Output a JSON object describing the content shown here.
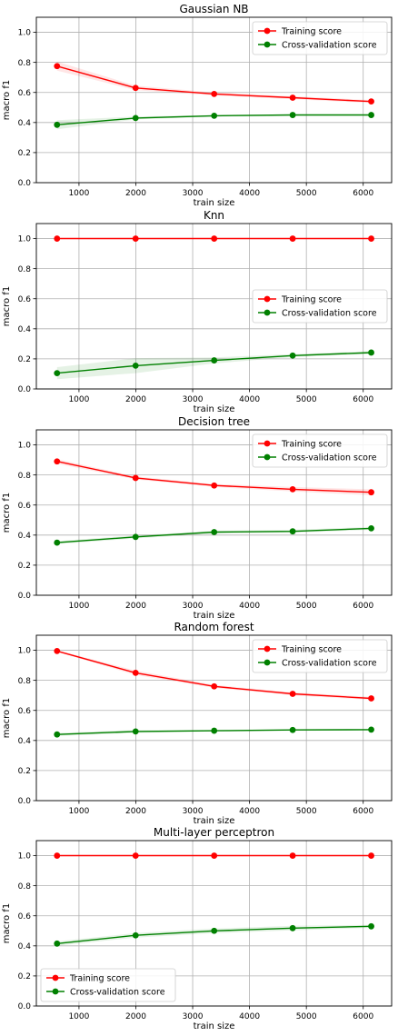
{
  "figure": {
    "background": "#ffffff",
    "colors": {
      "training": "#ff0000",
      "cv": "#008000",
      "grid": "#b0b0b0",
      "axis": "#000000"
    }
  },
  "chart_data": [
    {
      "type": "line",
      "title": "Gaussian NB",
      "xlabel": "train size",
      "ylabel": "macro f1",
      "xlim": [
        250,
        6500
      ],
      "ylim": [
        0,
        1.1
      ],
      "xticks": [
        1000,
        2000,
        3000,
        4000,
        5000,
        6000
      ],
      "yticks": [
        0.0,
        0.2,
        0.4,
        0.6,
        0.8,
        1.0
      ],
      "grid": true,
      "legend_position": "upper right",
      "x": [
        614,
        1996,
        3378,
        4759,
        6141
      ],
      "series": [
        {
          "name": "Training score",
          "color": "#ff0000",
          "values": [
            0.775,
            0.63,
            0.59,
            0.565,
            0.54
          ],
          "std": [
            0.03,
            0.015,
            0.01,
            0.01,
            0.01
          ]
        },
        {
          "name": "Cross-validation score",
          "color": "#008000",
          "values": [
            0.385,
            0.43,
            0.445,
            0.45,
            0.45
          ],
          "std": [
            0.03,
            0.01,
            0.005,
            0.005,
            0.005
          ]
        }
      ]
    },
    {
      "type": "line",
      "title": "Knn",
      "xlabel": "train size",
      "ylabel": "macro f1",
      "xlim": [
        250,
        6500
      ],
      "ylim": [
        0,
        1.1
      ],
      "xticks": [
        1000,
        2000,
        3000,
        4000,
        5000,
        6000
      ],
      "yticks": [
        0.0,
        0.2,
        0.4,
        0.6,
        0.8,
        1.0
      ],
      "grid": true,
      "legend_position": "center right",
      "x": [
        614,
        1996,
        3378,
        4759,
        6141
      ],
      "series": [
        {
          "name": "Training score",
          "color": "#ff0000",
          "values": [
            1.0,
            1.0,
            1.0,
            1.0,
            1.0
          ],
          "std": [
            0,
            0,
            0,
            0,
            0
          ]
        },
        {
          "name": "Cross-validation score",
          "color": "#008000",
          "values": [
            0.105,
            0.155,
            0.19,
            0.222,
            0.242
          ],
          "std": [
            0.04,
            0.05,
            0.02,
            0.01,
            0.01
          ]
        }
      ]
    },
    {
      "type": "line",
      "title": "Decision tree",
      "xlabel": "train size",
      "ylabel": "macro f1",
      "xlim": [
        250,
        6500
      ],
      "ylim": [
        0,
        1.1
      ],
      "xticks": [
        1000,
        2000,
        3000,
        4000,
        5000,
        6000
      ],
      "yticks": [
        0.0,
        0.2,
        0.4,
        0.6,
        0.8,
        1.0
      ],
      "grid": true,
      "legend_position": "upper right",
      "x": [
        614,
        1996,
        3378,
        4759,
        6141
      ],
      "series": [
        {
          "name": "Training score",
          "color": "#ff0000",
          "values": [
            0.89,
            0.78,
            0.73,
            0.705,
            0.685
          ],
          "std": [
            0.015,
            0.01,
            0.01,
            0.015,
            0.02
          ]
        },
        {
          "name": "Cross-validation score",
          "color": "#008000",
          "values": [
            0.35,
            0.388,
            0.42,
            0.425,
            0.445
          ],
          "std": [
            0.01,
            0.01,
            0.01,
            0.01,
            0.01
          ]
        }
      ]
    },
    {
      "type": "line",
      "title": "Random forest",
      "xlabel": "train size",
      "ylabel": "macro f1",
      "xlim": [
        250,
        6500
      ],
      "ylim": [
        0,
        1.1
      ],
      "xticks": [
        1000,
        2000,
        3000,
        4000,
        5000,
        6000
      ],
      "yticks": [
        0.0,
        0.2,
        0.4,
        0.6,
        0.8,
        1.0
      ],
      "grid": true,
      "legend_position": "upper right",
      "x": [
        614,
        1996,
        3378,
        4759,
        6141
      ],
      "series": [
        {
          "name": "Training score",
          "color": "#ff0000",
          "values": [
            0.995,
            0.85,
            0.76,
            0.71,
            0.68
          ],
          "std": [
            0.005,
            0.015,
            0.01,
            0.01,
            0.01
          ]
        },
        {
          "name": "Cross-validation score",
          "color": "#008000",
          "values": [
            0.44,
            0.46,
            0.465,
            0.47,
            0.472
          ],
          "std": [
            0.01,
            0.01,
            0.005,
            0.005,
            0.005
          ]
        }
      ]
    },
    {
      "type": "line",
      "title": "Multi-layer perceptron",
      "xlabel": "train size",
      "ylabel": "macro f1",
      "xlim": [
        250,
        6500
      ],
      "ylim": [
        0,
        1.1
      ],
      "xticks": [
        1000,
        2000,
        3000,
        4000,
        5000,
        6000
      ],
      "yticks": [
        0.0,
        0.2,
        0.4,
        0.6,
        0.8,
        1.0
      ],
      "grid": true,
      "legend_position": "lower left",
      "x": [
        614,
        1996,
        3378,
        4759,
        6141
      ],
      "series": [
        {
          "name": "Training score",
          "color": "#ff0000",
          "values": [
            1.0,
            1.0,
            1.0,
            1.0,
            1.0
          ],
          "std": [
            0,
            0,
            0,
            0,
            0
          ]
        },
        {
          "name": "Cross-validation score",
          "color": "#008000",
          "values": [
            0.415,
            0.47,
            0.5,
            0.518,
            0.53
          ],
          "std": [
            0.015,
            0.015,
            0.015,
            0.015,
            0.01
          ]
        }
      ]
    }
  ]
}
